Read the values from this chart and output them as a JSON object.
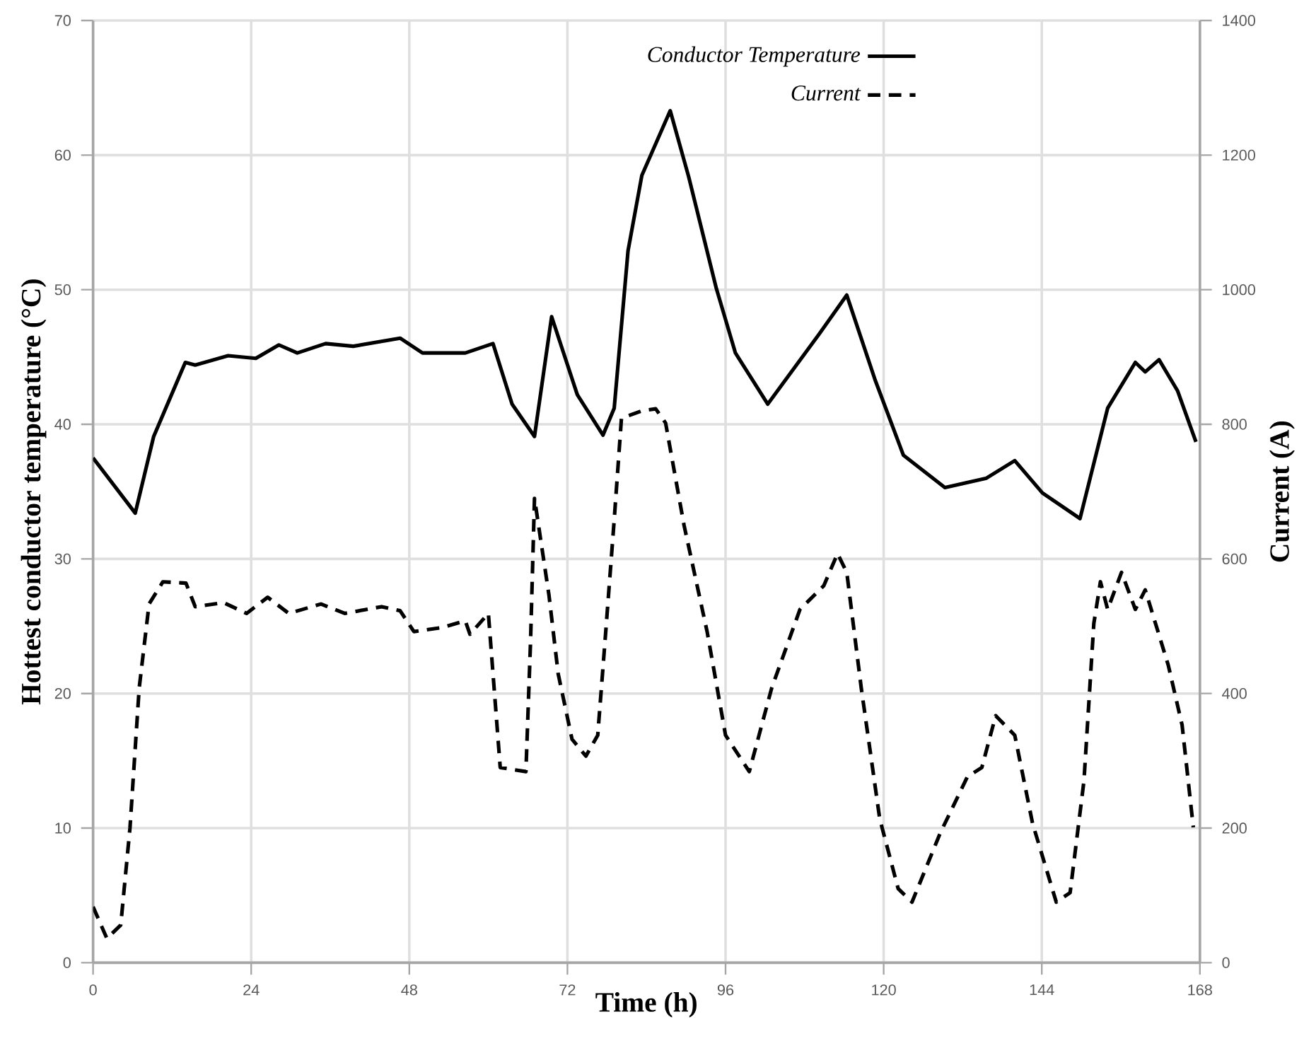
{
  "chart_data": {
    "type": "line",
    "xlabel": "Time (h)",
    "ylabel": "Hottest conductor temperature (°C)",
    "y2label": "Current (A)",
    "xlim": [
      0,
      168
    ],
    "xticks": [
      0,
      24,
      48,
      72,
      96,
      120,
      144,
      168
    ],
    "ylim": [
      0,
      70
    ],
    "yticks": [
      0,
      10,
      20,
      30,
      40,
      50,
      60,
      70
    ],
    "y2lim": [
      0,
      1400
    ],
    "y2ticks": [
      0,
      200,
      400,
      600,
      800,
      1000,
      1200,
      1400
    ],
    "grid": true,
    "legend": "top",
    "series": [
      {
        "name": "Conductor Temperature",
        "color": "#000000",
        "line_style": "solid",
        "x": [
          0,
          6.4,
          9.2,
          14,
          15.5,
          20.5,
          24.7,
          28.2,
          31,
          35.3,
          39.5,
          46.6,
          50,
          56.5,
          60.7,
          63.6,
          67,
          69.6,
          73.5,
          77.4,
          79.1,
          81.2,
          83.3,
          87.6,
          90.4,
          94.6,
          97.5,
          102.4,
          110.2,
          114.4,
          118.7,
          123,
          129.3,
          135.6,
          139.9,
          144.1,
          149.8,
          154,
          158.2,
          159.7,
          161.8,
          164.6,
          167.4
        ],
        "values": [
          37.5,
          33.4,
          39.1,
          44.6,
          44.4,
          45.1,
          44.9,
          45.9,
          45.3,
          46.0,
          45.8,
          46.4,
          45.3,
          45.3,
          46.0,
          41.5,
          39.1,
          48.0,
          42.2,
          39.2,
          41.2,
          52.9,
          58.5,
          63.3,
          58.4,
          50.1,
          45.3,
          41.5,
          46.7,
          49.6,
          43.3,
          37.7,
          35.3,
          36.0,
          37.3,
          34.9,
          33.0,
          41.2,
          44.6,
          43.9,
          44.8,
          42.5,
          38.7
        ]
      },
      {
        "name": "Current",
        "color": "#000000",
        "line_style": "dashed",
        "axis": "y2",
        "x": [
          0,
          2.1,
          4.2,
          5.6,
          7,
          8.5,
          10.6,
          14.1,
          15.5,
          19.8,
          23.3,
          26.5,
          29.7,
          34.6,
          38.2,
          43.8,
          46.6,
          48.7,
          53,
          56.5,
          57.2,
          60,
          61.8,
          65.7,
          66.4,
          67,
          69.2,
          70.6,
          72.7,
          74.8,
          76.6,
          77.7,
          79.1,
          80.2,
          83.3,
          85.4,
          86.9,
          89.7,
          93.2,
          96,
          99.6,
          103,
          107.3,
          110.9,
          113,
          114.4,
          116.6,
          119.4,
          122.2,
          124.3,
          128.6,
          132.7,
          134.9,
          137,
          139.9,
          142.6,
          146.2,
          148.3,
          150.4,
          151.9,
          152.9,
          154,
          156.1,
          158.2,
          159.7,
          163.2,
          165.3,
          167
        ],
        "values": [
          83,
          36,
          56,
          200,
          408,
          533,
          566,
          564,
          529,
          535,
          519,
          543,
          519,
          533,
          519,
          529,
          523,
          492,
          498,
          508,
          488,
          519,
          290,
          284,
          477,
          690,
          546,
          429,
          332,
          307,
          338,
          477,
          658,
          809,
          820,
          823,
          802,
          650,
          492,
          338,
          284,
          408,
          525,
          560,
          608,
          580,
          408,
          214,
          110,
          90,
          193,
          276,
          290,
          367,
          338,
          207,
          90,
          104,
          270,
          504,
          566,
          525,
          580,
          525,
          554,
          442,
          353,
          201
        ]
      }
    ]
  }
}
